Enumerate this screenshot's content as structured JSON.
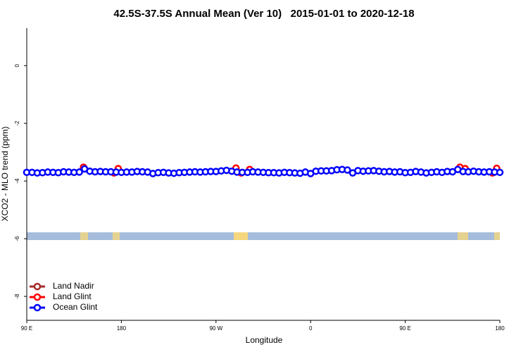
{
  "chart_data": {
    "type": "scatter",
    "title": "42.5S-37.5S Annual Mean (Ver 10)   2015-01-01 to 2020-12-18",
    "x_label": "Longitude",
    "y_label": "XCO2 - MLO trend (ppm)",
    "xlim": [
      90,
      540
    ],
    "ylim": [
      -8.83,
      1.3
    ],
    "xticks": [
      {
        "value": 90,
        "label": "90 E"
      },
      180,
      {
        "value": 270,
        "label": "90 W"
      },
      {
        "value": 360,
        "label": "0"
      },
      {
        "value": 450,
        "label": "90 E"
      },
      {
        "value": 540,
        "label": "180"
      }
    ],
    "yticks": [
      0,
      -2,
      -4,
      -6,
      -8
    ],
    "legend": "bottom-left",
    "series": [
      {
        "name": "Land Nadir",
        "color": "#a52a2a",
        "x": [
          144,
          289
        ],
        "values": [
          -3.55,
          -3.57
        ]
      },
      {
        "name": "Land Glint",
        "color": "#ff0000",
        "x": [
          144,
          173,
          177,
          289,
          294,
          302,
          502,
          507,
          533,
          537
        ],
        "values": [
          -3.52,
          -3.72,
          -3.57,
          -3.55,
          -3.72,
          -3.6,
          -3.52,
          -3.57,
          -3.72,
          -3.56
        ]
      },
      {
        "name": "Ocean Glint",
        "color": "#0000ff",
        "x": [
          90,
          95,
          100,
          105,
          110,
          115,
          120,
          125,
          130,
          135,
          140,
          145,
          150,
          155,
          160,
          165,
          170,
          175,
          180,
          185,
          190,
          195,
          200,
          205,
          210,
          215,
          220,
          225,
          230,
          235,
          240,
          245,
          250,
          255,
          260,
          265,
          270,
          275,
          280,
          285,
          290,
          295,
          300,
          305,
          310,
          315,
          320,
          325,
          330,
          335,
          340,
          345,
          350,
          355,
          360,
          365,
          370,
          375,
          380,
          385,
          390,
          395,
          400,
          405,
          410,
          415,
          420,
          425,
          430,
          435,
          440,
          445,
          450,
          455,
          460,
          465,
          470,
          475,
          480,
          485,
          490,
          495,
          500,
          505,
          510,
          515,
          520,
          525,
          530,
          535,
          540
        ],
        "values": [
          -3.7,
          -3.7,
          -3.72,
          -3.71,
          -3.69,
          -3.7,
          -3.71,
          -3.68,
          -3.69,
          -3.7,
          -3.69,
          -3.58,
          -3.66,
          -3.68,
          -3.67,
          -3.68,
          -3.68,
          -3.69,
          -3.7,
          -3.69,
          -3.69,
          -3.67,
          -3.68,
          -3.69,
          -3.74,
          -3.71,
          -3.7,
          -3.72,
          -3.73,
          -3.71,
          -3.7,
          -3.69,
          -3.68,
          -3.69,
          -3.68,
          -3.67,
          -3.67,
          -3.65,
          -3.63,
          -3.66,
          -3.69,
          -3.7,
          -3.7,
          -3.68,
          -3.69,
          -3.7,
          -3.71,
          -3.71,
          -3.72,
          -3.7,
          -3.71,
          -3.72,
          -3.73,
          -3.69,
          -3.74,
          -3.66,
          -3.65,
          -3.65,
          -3.64,
          -3.61,
          -3.6,
          -3.62,
          -3.72,
          -3.64,
          -3.66,
          -3.65,
          -3.64,
          -3.66,
          -3.68,
          -3.67,
          -3.69,
          -3.68,
          -3.71,
          -3.7,
          -3.67,
          -3.69,
          -3.72,
          -3.7,
          -3.68,
          -3.7,
          -3.67,
          -3.68,
          -3.6,
          -3.67,
          -3.68,
          -3.66,
          -3.68,
          -3.69,
          -3.68,
          -3.69,
          -3.7
        ]
      }
    ]
  }
}
